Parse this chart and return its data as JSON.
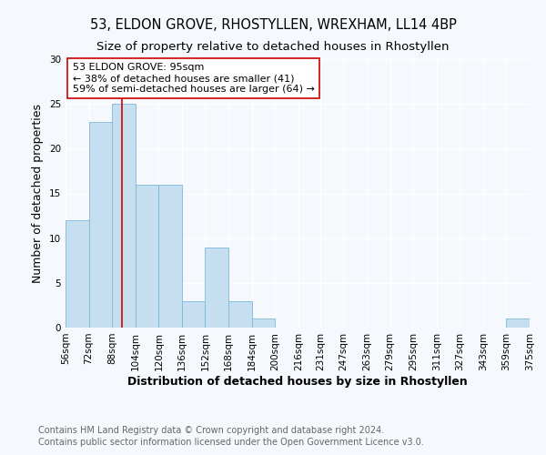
{
  "title": "53, ELDON GROVE, RHOSTYLLEN, WREXHAM, LL14 4BP",
  "subtitle": "Size of property relative to detached houses in Rhostyllen",
  "xlabel": "Distribution of detached houses by size in Rhostyllen",
  "ylabel": "Number of detached properties",
  "bin_edges": [
    56,
    72,
    88,
    104,
    120,
    136,
    152,
    168,
    184,
    200,
    216,
    231,
    247,
    263,
    279,
    295,
    311,
    327,
    343,
    359,
    375
  ],
  "bar_heights": [
    12,
    23,
    25,
    16,
    16,
    3,
    9,
    3,
    1,
    0,
    0,
    0,
    0,
    0,
    0,
    0,
    0,
    0,
    0,
    1
  ],
  "bar_color": "#c6dff0",
  "bar_edge_color": "#7db8d8",
  "vline_x": 95,
  "vline_color": "#cc0000",
  "annotation_text": "53 ELDON GROVE: 95sqm\n← 38% of detached houses are smaller (41)\n59% of semi-detached houses are larger (64) →",
  "annotation_box_edge_color": "#cc0000",
  "annotation_box_face_color": "#ffffff",
  "ylim": [
    0,
    30
  ],
  "yticks": [
    0,
    5,
    10,
    15,
    20,
    25,
    30
  ],
  "tick_labels": [
    "56sqm",
    "72sqm",
    "88sqm",
    "104sqm",
    "120sqm",
    "136sqm",
    "152sqm",
    "168sqm",
    "184sqm",
    "200sqm",
    "216sqm",
    "231sqm",
    "247sqm",
    "263sqm",
    "279sqm",
    "295sqm",
    "311sqm",
    "327sqm",
    "343sqm",
    "359sqm",
    "375sqm"
  ],
  "footer_line1": "Contains HM Land Registry data © Crown copyright and database right 2024.",
  "footer_line2": "Contains public sector information licensed under the Open Government Licence v3.0.",
  "background_color": "#f5f8fc",
  "plot_bg_color": "#f5f8fc",
  "grid_color": "#ffffff",
  "title_fontsize": 10.5,
  "subtitle_fontsize": 9.5,
  "axis_label_fontsize": 9,
  "tick_fontsize": 7.5,
  "annotation_fontsize": 8,
  "footer_fontsize": 7
}
